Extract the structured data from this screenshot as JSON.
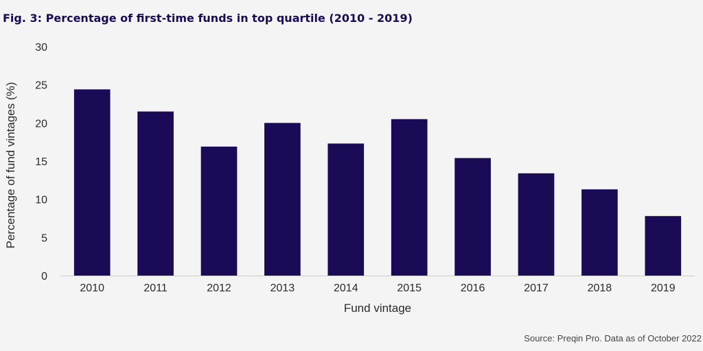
{
  "figure": {
    "title": "Fig. 3: Percentage of first-time funds in top quartile (2010 - 2019)",
    "source": "Source: Preqin Pro. Data as of October 2022"
  },
  "chart_data": {
    "type": "bar",
    "title": "Fig. 3: Percentage of first-time funds in top quartile (2010 - 2019)",
    "categories": [
      "2010",
      "2011",
      "2012",
      "2013",
      "2014",
      "2015",
      "2016",
      "2017",
      "2018",
      "2019"
    ],
    "values": [
      24.4,
      21.5,
      16.9,
      20.0,
      17.3,
      20.5,
      15.4,
      13.4,
      11.3,
      7.8
    ],
    "xlabel": "Fund vintage",
    "ylabel": "Percentage of fund vintages (%)",
    "ylim": [
      0,
      30
    ],
    "yticks": [
      "0",
      "5",
      "10",
      "15",
      "20",
      "25",
      "30"
    ],
    "grid": false,
    "bar_color": "#1b0a55",
    "axis_color": "#cccccc"
  }
}
